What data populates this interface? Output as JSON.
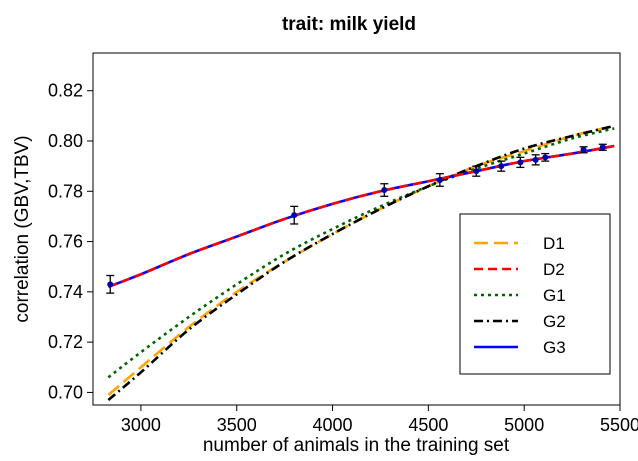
{
  "chart_data": {
    "type": "line",
    "title": "trait: milk yield",
    "xlabel": "number of animals in the training set",
    "ylabel": "correlation (GBV,TBV)",
    "xlim": [
      2750,
      5500
    ],
    "ylim": [
      0.695,
      0.835
    ],
    "xticks": [
      3000,
      3500,
      4000,
      4500,
      5000,
      5500
    ],
    "xtick_labels": [
      "3000",
      "3500",
      "4000",
      "4500",
      "5000",
      "5500"
    ],
    "yticks": [
      0.7,
      0.72,
      0.74,
      0.76,
      0.78,
      0.8,
      0.82
    ],
    "ytick_labels": [
      "0.70",
      "0.72",
      "0.74",
      "0.76",
      "0.78",
      "0.80",
      "0.82"
    ],
    "grid": false,
    "legend_position": "right",
    "x": [
      2830,
      3000,
      3250,
      3500,
      3750,
      4000,
      4250,
      4500,
      4750,
      5000,
      5250,
      5470
    ],
    "series": [
      {
        "name": "D1",
        "color": "#FFA500",
        "dash": "long-dash",
        "values": [
          0.699,
          0.71,
          0.726,
          0.74,
          0.752,
          0.763,
          0.773,
          0.782,
          0.79,
          0.796,
          0.802,
          0.806
        ]
      },
      {
        "name": "D2",
        "color": "#FF0000",
        "dash": "dash",
        "values": [
          0.742,
          0.747,
          0.755,
          0.762,
          0.769,
          0.775,
          0.78,
          0.784,
          0.788,
          0.792,
          0.795,
          0.798
        ]
      },
      {
        "name": "G1",
        "color": "#006400",
        "dash": "dot",
        "values": [
          0.706,
          0.716,
          0.73,
          0.743,
          0.755,
          0.765,
          0.774,
          0.782,
          0.789,
          0.795,
          0.801,
          0.805
        ]
      },
      {
        "name": "G2",
        "color": "#000000",
        "dash": "dash-dot",
        "values": [
          0.697,
          0.708,
          0.725,
          0.739,
          0.752,
          0.763,
          0.773,
          0.782,
          0.79,
          0.797,
          0.802,
          0.806
        ]
      },
      {
        "name": "G3",
        "color": "#0000FF",
        "dash": "solid",
        "values": [
          0.742,
          0.747,
          0.755,
          0.762,
          0.769,
          0.775,
          0.78,
          0.784,
          0.788,
          0.792,
          0.795,
          0.798
        ]
      }
    ],
    "points": [
      {
        "x": 2840,
        "y": 0.743,
        "err": 0.0035
      },
      {
        "x": 3800,
        "y": 0.7705,
        "err": 0.0035
      },
      {
        "x": 4270,
        "y": 0.7805,
        "err": 0.0025
      },
      {
        "x": 4560,
        "y": 0.7845,
        "err": 0.0025
      },
      {
        "x": 4750,
        "y": 0.788,
        "err": 0.002
      },
      {
        "x": 4880,
        "y": 0.79,
        "err": 0.002
      },
      {
        "x": 4980,
        "y": 0.7915,
        "err": 0.002
      },
      {
        "x": 5060,
        "y": 0.7925,
        "err": 0.002
      },
      {
        "x": 5110,
        "y": 0.7935,
        "err": 0.0015
      },
      {
        "x": 5310,
        "y": 0.7965,
        "err": 0.0012
      },
      {
        "x": 5410,
        "y": 0.7975,
        "err": 0.0012
      }
    ],
    "points_color": "#0000AA",
    "errorbar_color": "#000000"
  }
}
